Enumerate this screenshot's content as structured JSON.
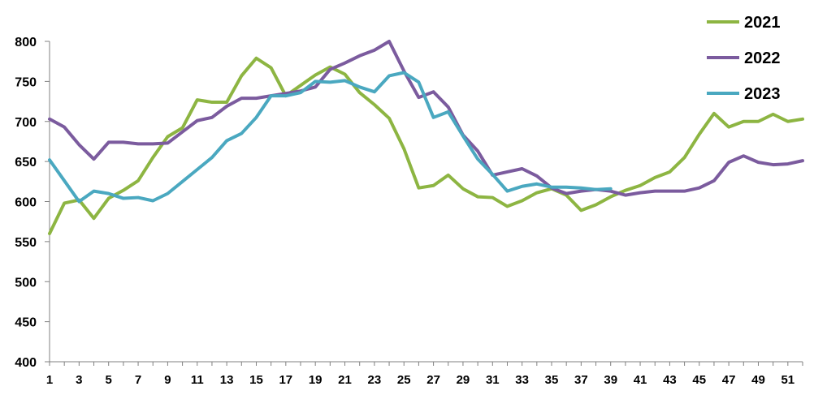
{
  "chart_data": {
    "type": "line",
    "title": "",
    "xlabel": "",
    "ylabel": "",
    "ylim": [
      400,
      800
    ],
    "xlim": [
      1,
      52
    ],
    "yticks": [
      400,
      450,
      500,
      550,
      600,
      650,
      700,
      750,
      800
    ],
    "xtick_labels": [
      "1",
      "3",
      "5",
      "7",
      "9",
      "11",
      "13",
      "15",
      "17",
      "19",
      "21",
      "23",
      "25",
      "27",
      "29",
      "31",
      "33",
      "35",
      "37",
      "39",
      "41",
      "43",
      "45",
      "47",
      "49",
      "51"
    ],
    "grid": false,
    "legend_position": "top-right",
    "series": [
      {
        "name": "2021",
        "color": "#8db542",
        "x": [
          1,
          2,
          3,
          4,
          5,
          6,
          7,
          8,
          9,
          10,
          11,
          12,
          13,
          14,
          15,
          16,
          17,
          18,
          19,
          20,
          21,
          22,
          23,
          24,
          25,
          26,
          27,
          28,
          29,
          30,
          31,
          32,
          33,
          34,
          35,
          36,
          37,
          38,
          39,
          40,
          41,
          42,
          43,
          44,
          45,
          46,
          47,
          48,
          49,
          50,
          51,
          52
        ],
        "values": [
          560,
          598,
          602,
          579,
          604,
          614,
          626,
          655,
          681,
          692,
          727,
          724,
          724,
          757,
          779,
          767,
          732,
          745,
          758,
          768,
          759,
          736,
          721,
          704,
          666,
          617,
          620,
          633,
          616,
          606,
          605,
          594,
          601,
          611,
          616,
          608,
          589,
          596,
          606,
          614,
          620,
          630,
          637,
          655,
          684,
          710,
          693,
          700,
          700,
          709,
          700,
          703
        ]
      },
      {
        "name": "2022",
        "color": "#7b5b9e",
        "x": [
          1,
          2,
          3,
          4,
          5,
          6,
          7,
          8,
          9,
          10,
          11,
          12,
          13,
          14,
          15,
          16,
          17,
          18,
          19,
          20,
          21,
          22,
          23,
          24,
          25,
          26,
          27,
          28,
          29,
          30,
          31,
          32,
          33,
          34,
          35,
          36,
          37,
          38,
          39,
          40,
          41,
          42,
          43,
          44,
          45,
          46,
          47,
          48,
          49,
          50,
          51,
          52
        ],
        "values": [
          703,
          693,
          671,
          653,
          674,
          674,
          672,
          672,
          673,
          687,
          701,
          705,
          719,
          729,
          729,
          732,
          735,
          738,
          743,
          765,
          773,
          782,
          789,
          800,
          763,
          730,
          737,
          718,
          683,
          663,
          633,
          637,
          641,
          632,
          617,
          610,
          613,
          615,
          613,
          608,
          611,
          613,
          613,
          613,
          617,
          626,
          649,
          657,
          649,
          646,
          647,
          651
        ]
      },
      {
        "name": "2023",
        "color": "#4aa8c0",
        "x": [
          1,
          2,
          3,
          4,
          5,
          6,
          7,
          8,
          9,
          10,
          11,
          12,
          13,
          14,
          15,
          16,
          17,
          18,
          19,
          20,
          21,
          22,
          23,
          24,
          25,
          26,
          27,
          28,
          29,
          30,
          31,
          32,
          33,
          34,
          35,
          36,
          37,
          38,
          39
        ],
        "values": [
          652,
          626,
          600,
          613,
          610,
          604,
          605,
          601,
          610,
          625,
          640,
          655,
          676,
          685,
          705,
          732,
          732,
          736,
          750,
          749,
          751,
          743,
          737,
          757,
          761,
          749,
          705,
          712,
          682,
          653,
          634,
          613,
          619,
          622,
          618,
          618,
          617,
          615,
          616
        ]
      }
    ]
  }
}
